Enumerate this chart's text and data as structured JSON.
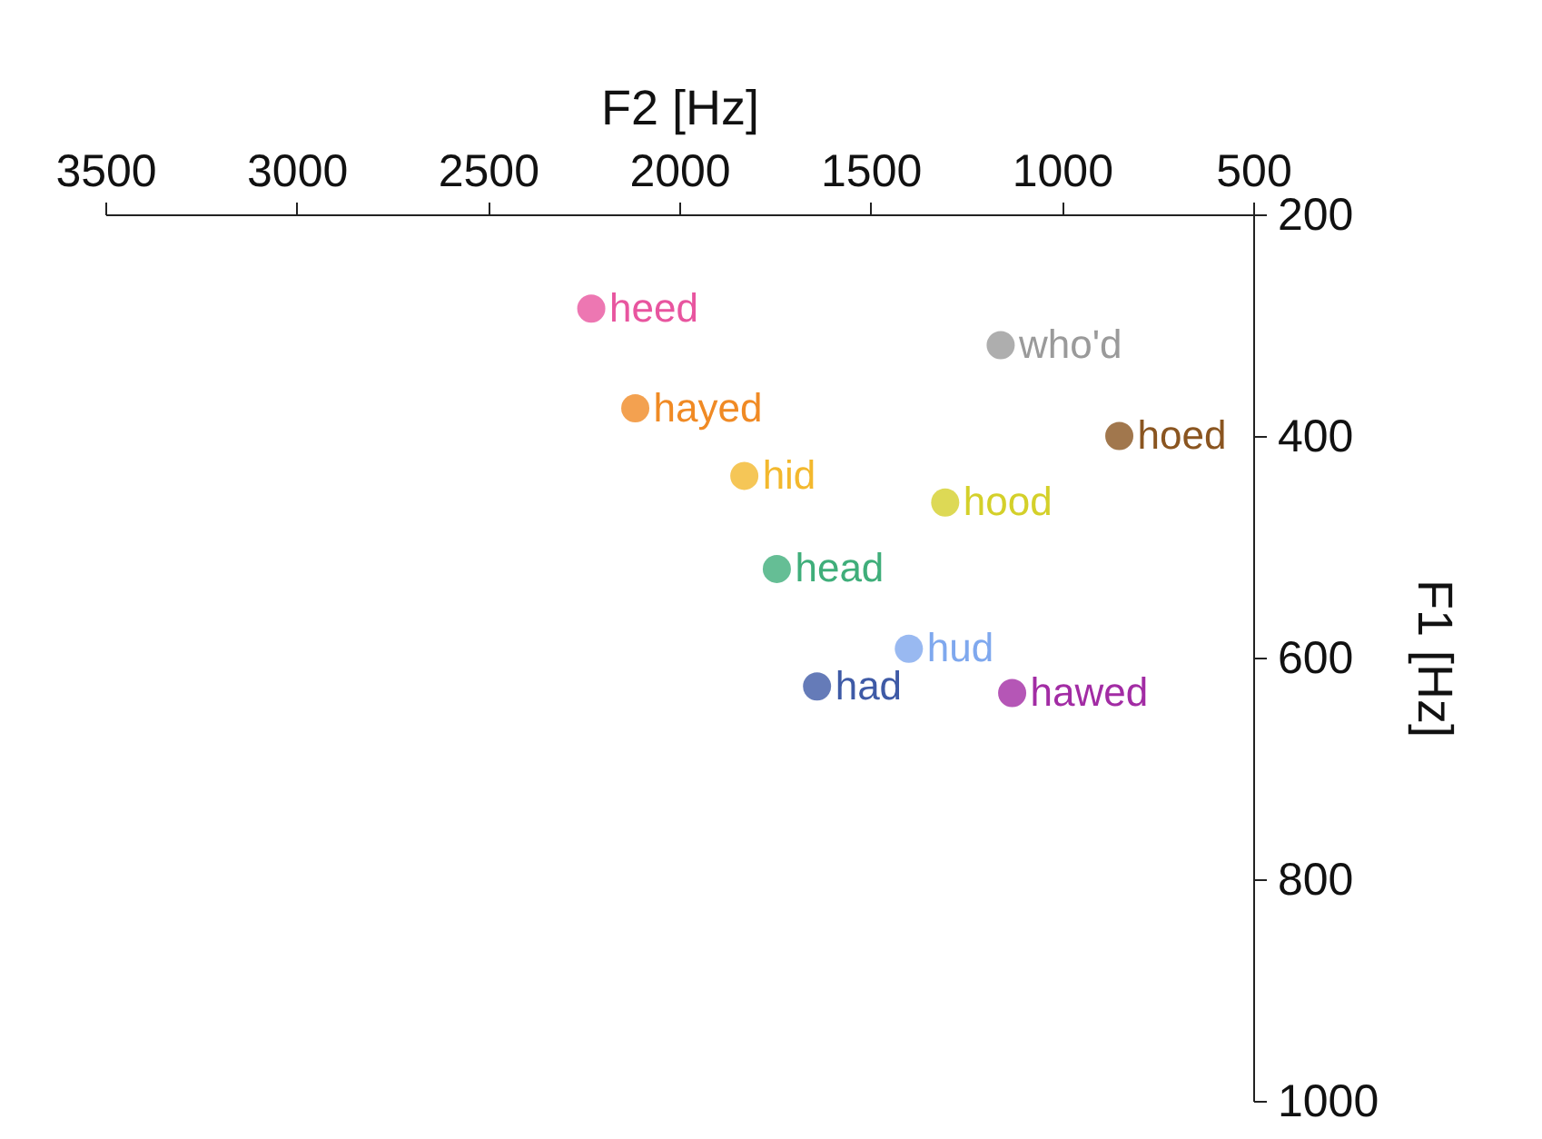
{
  "chart_data": {
    "type": "scatter",
    "xlabel": "F2 [Hz]",
    "ylabel": "F1 [Hz]",
    "xlim": [
      3500,
      500
    ],
    "xticks": [
      3500,
      3000,
      2500,
      2000,
      1500,
      1000,
      500
    ],
    "ylim": [
      1000,
      200
    ],
    "yticks": [
      200,
      400,
      600,
      800,
      1000
    ],
    "grid": false,
    "legend": false,
    "marker": "circle",
    "series": [
      {
        "name": "heed",
        "color": "#e8559f",
        "x": [
          2230
        ],
        "values": [
          285
        ]
      },
      {
        "name": "hayed",
        "color": "#f08a24",
        "x": [
          2115
        ],
        "values": [
          375
        ]
      },
      {
        "name": "hid",
        "color": "#f3b82d",
        "x": [
          1830
        ],
        "values": [
          436
        ]
      },
      {
        "name": "head",
        "color": "#3fae7a",
        "x": [
          1745
        ],
        "values": [
          520
        ]
      },
      {
        "name": "had",
        "color": "#3e5aa6",
        "x": [
          1640
        ],
        "values": [
          626
        ]
      },
      {
        "name": "hud",
        "color": "#7fa8ee",
        "x": [
          1400
        ],
        "values": [
          592
        ]
      },
      {
        "name": "hawed",
        "color": "#a22ca4",
        "x": [
          1130
        ],
        "values": [
          632
        ]
      },
      {
        "name": "hood",
        "color": "#d4d02a",
        "x": [
          1305
        ],
        "values": [
          460
        ]
      },
      {
        "name": "who'd",
        "color": "#9a9a9a",
        "x": [
          1160
        ],
        "values": [
          318
        ]
      },
      {
        "name": "hoed",
        "color": "#8a5520",
        "x": [
          850
        ],
        "values": [
          400
        ]
      }
    ]
  }
}
